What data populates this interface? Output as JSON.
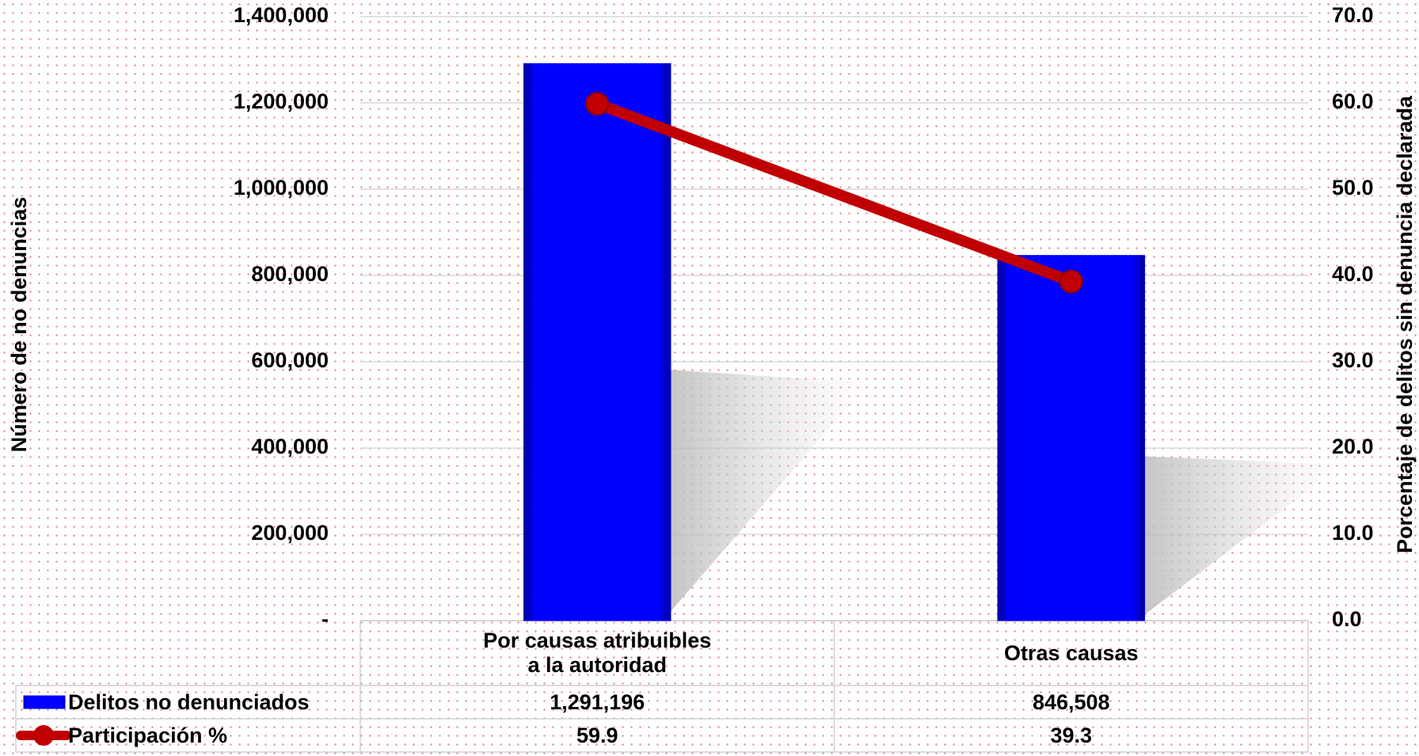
{
  "chart_data": {
    "type": "bar-line",
    "categories": [
      "Por causas atribuibles a la autoridad",
      "Otras causas"
    ],
    "series": [
      {
        "name": "Delitos no denunciados",
        "color": "#0000ff",
        "values": [
          1291196,
          846508
        ],
        "value_labels": [
          "1,291,196",
          "846,508"
        ]
      },
      {
        "name": "Participación %",
        "color": "#c00000",
        "values": [
          59.9,
          39.3
        ],
        "axis": "y2"
      }
    ],
    "ylabel": "Número de no denuncias",
    "y2label": "Porcentaje de delitos sin denuncia declarada",
    "ylim": [
      0,
      1400000
    ],
    "yticks": [
      {
        "value": 0,
        "label": "-"
      },
      {
        "value": 200000,
        "label": "200,000"
      },
      {
        "value": 400000,
        "label": "400,000"
      },
      {
        "value": 600000,
        "label": "600,000"
      },
      {
        "value": 800000,
        "label": "800,000"
      },
      {
        "value": 1000000,
        "label": "1,000,000"
      },
      {
        "value": 1200000,
        "label": "1,200,000"
      },
      {
        "value": 1400000,
        "label": "1,400,000"
      }
    ],
    "y2lim": [
      0,
      70
    ],
    "y2ticks": [
      {
        "value": 0,
        "label": "0.0"
      },
      {
        "value": 10,
        "label": "10.0"
      },
      {
        "value": 20,
        "label": "20.0"
      },
      {
        "value": 30,
        "label": "30.0"
      },
      {
        "value": 40,
        "label": "40.0"
      },
      {
        "value": 50,
        "label": "50.0"
      },
      {
        "value": 60,
        "label": "60.0"
      },
      {
        "value": 70,
        "label": "70.0"
      }
    ],
    "grid": true
  }
}
